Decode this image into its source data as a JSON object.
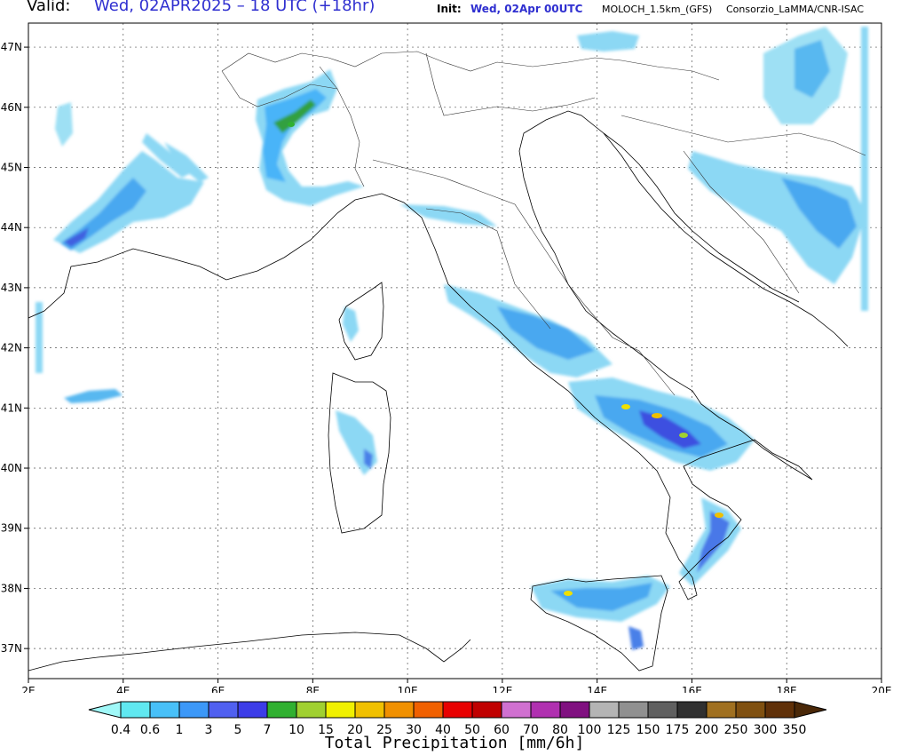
{
  "header": {
    "valid_label": "Valid:",
    "valid_value": "Wed, 02APR2025 – 18 UTC (+18hr)",
    "init_label": "Init:",
    "init_value": "Wed, 02Apr 00UTC",
    "model": "MOLOCH_1.5km_(GFS)",
    "credit": "Consorzio_LaMMA/CNR-ISAC"
  },
  "map": {
    "lon_range": [
      2,
      20
    ],
    "lat_range": [
      36.5,
      47.4
    ],
    "x_ticks": [
      "2E",
      "4E",
      "6E",
      "8E",
      "10E",
      "12E",
      "14E",
      "16E",
      "18E",
      "20E"
    ],
    "y_ticks": [
      "37N",
      "38N",
      "39N",
      "40N",
      "41N",
      "42N",
      "43N",
      "44N",
      "45N",
      "46N",
      "47N"
    ],
    "grid": true
  },
  "legend": {
    "title": "Total Precipitation [mm/6h]",
    "thresholds": [
      "0.4",
      "0.6",
      "1",
      "3",
      "5",
      "7",
      "10",
      "15",
      "20",
      "25",
      "30",
      "40",
      "50",
      "60",
      "70",
      "80",
      "100",
      "125",
      "150",
      "175",
      "200",
      "250",
      "300",
      "350"
    ],
    "colors": [
      "#a0f8f8",
      "#60e8f0",
      "#48c0f8",
      "#3c98f8",
      "#5060f0",
      "#3c3ce8",
      "#30b030",
      "#a0d030",
      "#f0f000",
      "#f0c000",
      "#f09000",
      "#f06000",
      "#e80000",
      "#c00000",
      "#d070d0",
      "#b030b0",
      "#801080",
      "#b4b4b4",
      "#909090",
      "#606060",
      "#303030",
      "#a07020",
      "#805010",
      "#603008",
      "#4a2808"
    ]
  }
}
